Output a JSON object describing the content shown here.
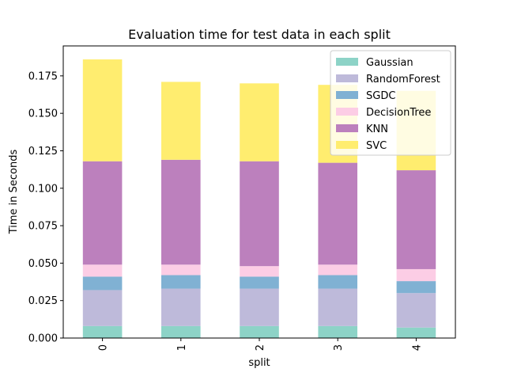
{
  "chart_data": {
    "type": "bar",
    "stacked": true,
    "title": "Evaluation time for test data in each split",
    "xlabel": "split",
    "ylabel": "Time in Seconds",
    "categories": [
      "0",
      "1",
      "2",
      "3",
      "4"
    ],
    "ylim": [
      0,
      0.195
    ],
    "yticks": [
      "0.000",
      "0.025",
      "0.050",
      "0.075",
      "0.100",
      "0.125",
      "0.150",
      "0.175"
    ],
    "ytick_values": [
      0,
      0.025,
      0.05,
      0.075,
      0.1,
      0.125,
      0.15,
      0.175
    ],
    "grid": false,
    "legend_position": "top-right",
    "series": [
      {
        "name": "Gaussian",
        "color": "#8dd3c7",
        "values": [
          0.008,
          0.008,
          0.008,
          0.008,
          0.007
        ]
      },
      {
        "name": "RandomForest",
        "color": "#bebada",
        "values": [
          0.024,
          0.025,
          0.025,
          0.025,
          0.023
        ]
      },
      {
        "name": "SGDC",
        "color": "#80b1d3",
        "values": [
          0.009,
          0.009,
          0.008,
          0.009,
          0.008
        ]
      },
      {
        "name": "DecisionTree",
        "color": "#fccde5",
        "values": [
          0.008,
          0.007,
          0.007,
          0.007,
          0.008
        ]
      },
      {
        "name": "KNN",
        "color": "#bc80bd",
        "values": [
          0.069,
          0.07,
          0.07,
          0.068,
          0.066
        ]
      },
      {
        "name": "SVC",
        "color": "#ffed6f",
        "values": [
          0.068,
          0.052,
          0.052,
          0.052,
          0.053
        ]
      }
    ]
  }
}
